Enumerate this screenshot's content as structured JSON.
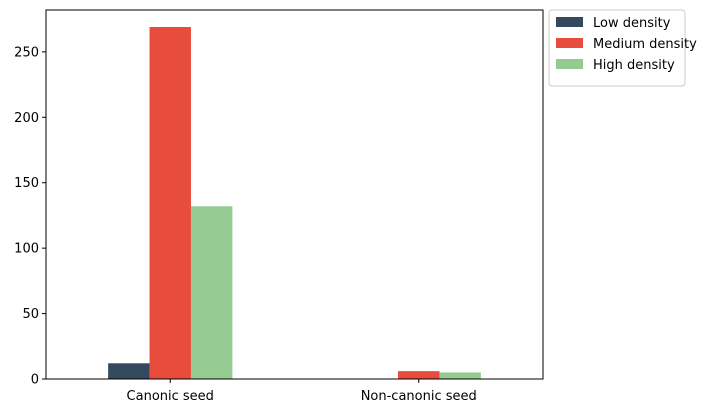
{
  "chart_data": {
    "type": "bar",
    "title": "",
    "xlabel": "",
    "ylabel": "",
    "categories": [
      "Canonic seed",
      "Non-canonic seed"
    ],
    "series": [
      {
        "name": "Low density",
        "color": "#34495e",
        "values": [
          12,
          0
        ]
      },
      {
        "name": "Medium density",
        "color": "#e74c3c",
        "values": [
          269,
          6
        ]
      },
      {
        "name": "High density",
        "color": "#95ca91",
        "values": [
          132,
          5
        ]
      }
    ],
    "ylim": [
      0,
      282
    ],
    "yticks": [
      0,
      50,
      100,
      150,
      200,
      250
    ],
    "ytick_labels": [
      "0",
      "50",
      "100",
      "150",
      "200",
      "250"
    ],
    "legend": {
      "position": "outside-upper-right"
    },
    "grid": false
  }
}
